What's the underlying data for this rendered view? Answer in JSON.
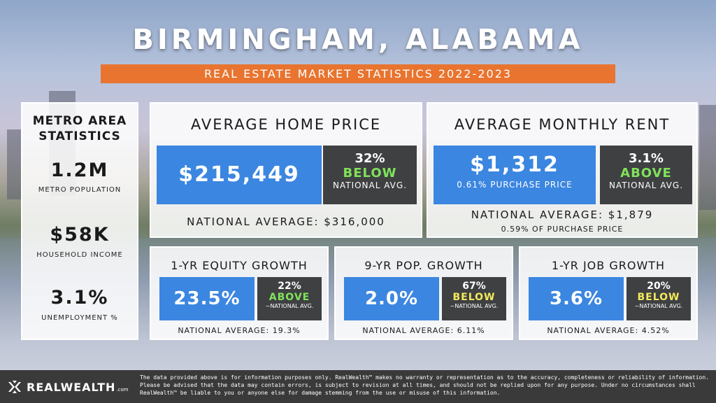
{
  "header": {
    "title": "BIRMINGHAM, ALABAMA",
    "subtitle": "REAL ESTATE MARKET STATISTICS 2022-2023"
  },
  "metro": {
    "heading_line1": "METRO AREA",
    "heading_line2": "STATISTICS",
    "stats": [
      {
        "value": "1.2M",
        "label": "METRO POPULATION"
      },
      {
        "value": "$58K",
        "label": "HOUSEHOLD INCOME"
      },
      {
        "value": "3.1%",
        "label": "UNEMPLOYMENT %"
      }
    ]
  },
  "home_price": {
    "heading": "AVERAGE HOME PRICE",
    "value": "$215,449",
    "compare_pct": "32%",
    "compare_word": "BELOW",
    "compare_label": "NATIONAL AVG.",
    "national": "NATIONAL AVERAGE: $316,000"
  },
  "rent": {
    "heading": "AVERAGE MONTHLY RENT",
    "value": "$1,312",
    "value_sub": "0.61% PURCHASE PRICE",
    "compare_pct": "3.1%",
    "compare_word": "ABOVE",
    "compare_label": "NATIONAL AVG.",
    "national": "NATIONAL AVERAGE: $1,879",
    "national_sub": "0.59% OF PURCHASE PRICE"
  },
  "equity": {
    "heading": "1-YR EQUITY GROWTH",
    "value": "23.5%",
    "compare_pct": "22%",
    "compare_word": "ABOVE",
    "compare_label": "~NATIONAL AVG.",
    "national": "NATIONAL AVERAGE: 19.3%"
  },
  "pop": {
    "heading": "9-YR POP. GROWTH",
    "value": "2.0%",
    "compare_pct": "67%",
    "compare_word": "BELOW",
    "compare_label": "~NATIONAL AVG.",
    "national": "NATIONAL AVERAGE: 6.11%"
  },
  "jobs": {
    "heading": "1-YR JOB GROWTH",
    "value": "3.6%",
    "compare_pct": "20%",
    "compare_word": "BELOW",
    "compare_label": "~NATIONAL AVG.",
    "national": "NATIONAL AVERAGE: 4.52%"
  },
  "footer": {
    "brand": "REALWEALTH",
    "brand_suffix": ".com",
    "disclaimer": "The data provided above is for information purposes only. RealWealth™ makes no warranty or representation as to the accuracy, completeness or reliability of information. Please be advised that the data may contain errors, is subject to revision at all times, and should not be replied upon for any purpose. Under no circumstances shall RealWealth™ be liable to you or anyone else for damage stemming from the use or misuse of this information."
  },
  "colors": {
    "accent_orange": "#e8742f",
    "stat_blue": "#3b86e0",
    "compare_dark": "#3f4042",
    "above_green": "#7fe35a",
    "below_green": "#7fe35a",
    "below_yellow": "#f2ea5a"
  }
}
